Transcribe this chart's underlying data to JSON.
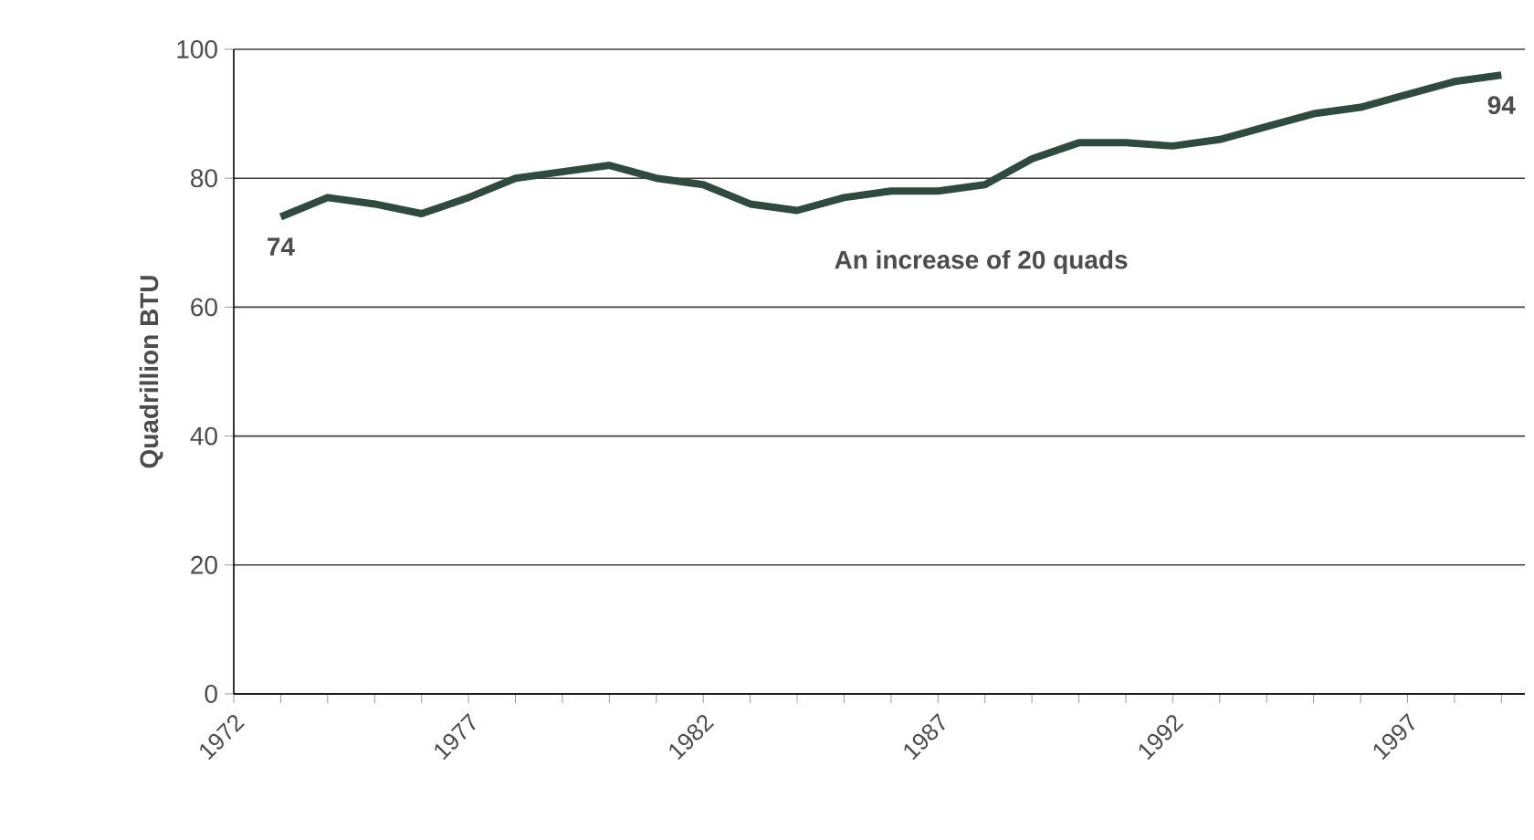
{
  "chart_data": {
    "type": "line",
    "ylabel": "Quadrillion BTU",
    "x": [
      1973,
      1974,
      1975,
      1976,
      1977,
      1978,
      1979,
      1980,
      1981,
      1982,
      1983,
      1984,
      1985,
      1986,
      1987,
      1988,
      1989,
      1990,
      1991,
      1992,
      1993,
      1994,
      1995,
      1996,
      1997,
      1998,
      1999
    ],
    "series": [
      {
        "color": "#2f4a3f",
        "values": [
          74,
          77,
          76,
          74.5,
          77,
          80,
          81,
          82,
          80,
          79,
          76,
          75,
          77,
          78,
          78,
          79,
          83,
          85.5,
          85.5,
          85,
          86,
          88,
          90,
          91,
          93,
          95,
          96
        ]
      }
    ],
    "xlim": [
      1972,
      1999.5
    ],
    "xticks": [
      1972,
      {
        "value": 1973,
        "label": null
      },
      {
        "value": 1974,
        "label": null
      },
      {
        "value": 1975,
        "label": null
      },
      {
        "value": 1976,
        "label": null
      },
      1977,
      {
        "value": 1978,
        "label": null
      },
      {
        "value": 1979,
        "label": null
      },
      {
        "value": 1980,
        "label": null
      },
      {
        "value": 1981,
        "label": null
      },
      1982,
      {
        "value": 1983,
        "label": null
      },
      {
        "value": 1984,
        "label": null
      },
      {
        "value": 1985,
        "label": null
      },
      {
        "value": 1986,
        "label": null
      },
      1987,
      {
        "value": 1988,
        "label": null
      },
      {
        "value": 1989,
        "label": null
      },
      {
        "value": 1990,
        "label": null
      },
      {
        "value": 1991,
        "label": null
      },
      1992,
      {
        "value": 1993,
        "label": null
      },
      {
        "value": 1994,
        "label": null
      },
      {
        "value": 1995,
        "label": null
      },
      {
        "value": 1996,
        "label": null
      },
      1997,
      {
        "value": 1998,
        "label": null
      },
      {
        "value": 1999,
        "label": null
      }
    ],
    "ylim": [
      0,
      100
    ],
    "yticks": [
      0,
      20,
      40,
      60,
      80,
      100
    ],
    "grid": "y",
    "marker": "none",
    "line_style": "solid",
    "annotations": [
      {
        "text": "74",
        "x": 1973,
        "y": 74
      },
      {
        "text": "94",
        "x": 1999,
        "y": 96
      },
      "An increase of 20 quads"
    ]
  }
}
